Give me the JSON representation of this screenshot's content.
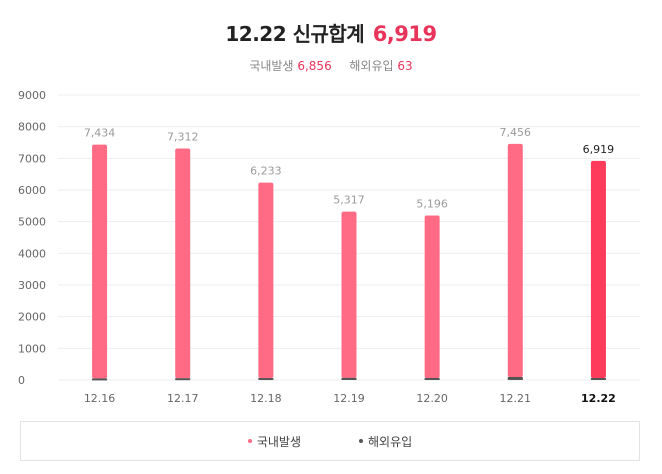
{
  "header": {
    "date_label": "12.22",
    "title_label": "신규합계",
    "total_value": "6,919",
    "domestic_label": "국내발생",
    "domestic_value": "6,856",
    "overseas_label": "해외유입",
    "overseas_value": "63"
  },
  "colors": {
    "domestic": "#ff6b84",
    "domestic_highlight": "#ff3b5c",
    "overseas": "#555555",
    "grid": "#eeeeee",
    "value_label": "#9a9a9a",
    "accent": "#e8345a"
  },
  "chart_data": {
    "type": "bar",
    "stacked": true,
    "categories": [
      "12.16",
      "12.17",
      "12.18",
      "12.19",
      "12.20",
      "12.21",
      "12.22"
    ],
    "series": [
      {
        "name": "국내발생",
        "values": [
          7384,
          7255,
          6171,
          5248,
          5131,
          7360,
          6856
        ]
      },
      {
        "name": "해외유입",
        "values": [
          50,
          57,
          62,
          69,
          65,
          96,
          63
        ]
      }
    ],
    "totals": [
      "7,434",
      "7,312",
      "6,233",
      "5,317",
      "5,196",
      "7,456",
      "6,919"
    ],
    "highlight_index": 6,
    "ylim": [
      0,
      9000
    ],
    "yticks": [
      0,
      1000,
      2000,
      3000,
      4000,
      5000,
      6000,
      7000,
      8000,
      9000
    ],
    "grid": true,
    "legend": "bottom"
  }
}
